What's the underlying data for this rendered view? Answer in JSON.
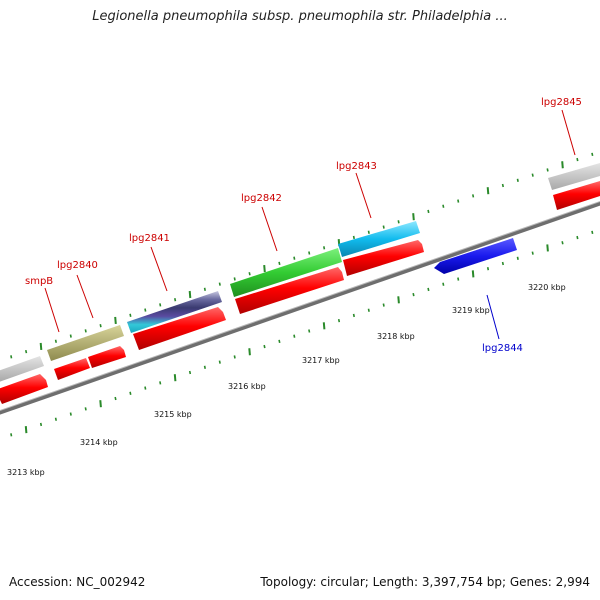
{
  "title": "Legionella pneumophila subsp. pneumophila str. Philadelphia ...",
  "footer": {
    "accession": "Accession: NC_002942",
    "topology": "Topology: circular; Length: 3,397,754 bp; Genes: 2,994"
  },
  "colors": {
    "backbone": "#7a7a7a",
    "tick": "#2a8a2a",
    "cds": "#ff0000",
    "label_forward": "#cc0000",
    "label_reverse": "#0000cc"
  },
  "scale_labels": [
    {
      "kbp": 3213,
      "text": "3213 kbp"
    },
    {
      "kbp": 3214,
      "text": "3214 kbp"
    },
    {
      "kbp": 3215,
      "text": "3215 kbp"
    },
    {
      "kbp": 3216,
      "text": "3216 kbp"
    },
    {
      "kbp": 3217,
      "text": "3217 kbp"
    },
    {
      "kbp": 3218,
      "text": "3218 kbp"
    },
    {
      "kbp": 3219,
      "text": "3219 kbp"
    },
    {
      "kbp": 3220,
      "text": "3220 kbp"
    }
  ],
  "gene_labels": [
    {
      "name": "smpB",
      "strand": "forward"
    },
    {
      "name": "lpg2840",
      "strand": "forward"
    },
    {
      "name": "lpg2841",
      "strand": "forward"
    },
    {
      "name": "lpg2842",
      "strand": "forward"
    },
    {
      "name": "lpg2843",
      "strand": "forward"
    },
    {
      "name": "lpg2844",
      "strand": "reverse"
    },
    {
      "name": "lpg2845",
      "strand": "forward"
    }
  ]
}
